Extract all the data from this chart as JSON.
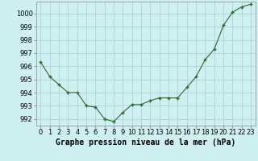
{
  "x": [
    0,
    1,
    2,
    3,
    4,
    5,
    6,
    7,
    8,
    9,
    10,
    11,
    12,
    13,
    14,
    15,
    16,
    17,
    18,
    19,
    20,
    21,
    22,
    23
  ],
  "y": [
    996.3,
    995.2,
    994.6,
    994.0,
    994.0,
    993.0,
    992.9,
    992.0,
    991.8,
    992.5,
    993.1,
    993.1,
    993.4,
    993.6,
    993.6,
    993.6,
    994.4,
    995.2,
    996.5,
    997.3,
    999.1,
    1000.1,
    1000.5,
    1000.7
  ],
  "line_color": "#2d6a2d",
  "marker": "P",
  "marker_size": 3,
  "bg_color": "#cff0f0",
  "grid_color": "#aad4d4",
  "ylabel_ticks": [
    992,
    993,
    994,
    995,
    996,
    997,
    998,
    999,
    1000
  ],
  "xlabel": "Graphe pression niveau de la mer (hPa)",
  "xlim": [
    -0.5,
    23.5
  ],
  "ylim": [
    991.5,
    1000.9
  ],
  "xlabel_fontsize": 7,
  "tick_fontsize": 6
}
